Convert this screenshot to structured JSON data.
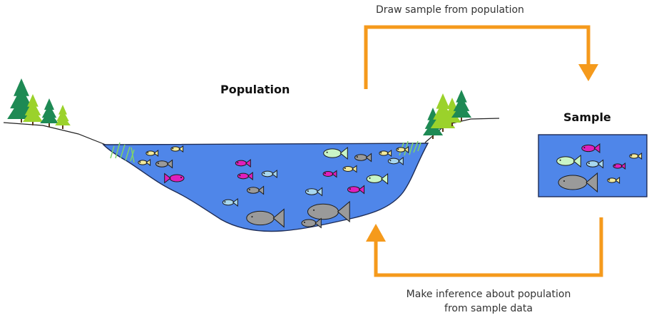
{
  "labels": {
    "population": "Population",
    "sample": "Sample",
    "draw_sample": "Draw sample from population",
    "inference_line1": "Make inference about population",
    "inference_line2": "from sample data"
  },
  "colors": {
    "water": "#4f86e9",
    "water_edge": "#1e2c55",
    "arrow": "#f59a1c",
    "tree_dark": "#1e8a54",
    "tree_light": "#9bd22b",
    "fish_magenta": "#e01fbd",
    "fish_mint": "#c9f5c6",
    "fish_lightblue": "#a8d7ef",
    "fish_gray": "#9a9a9a",
    "fish_yellow": "#f3ea9c"
  },
  "icons": [
    "tree-icon",
    "fish-icon",
    "grass-icon",
    "arrow-icon"
  ]
}
